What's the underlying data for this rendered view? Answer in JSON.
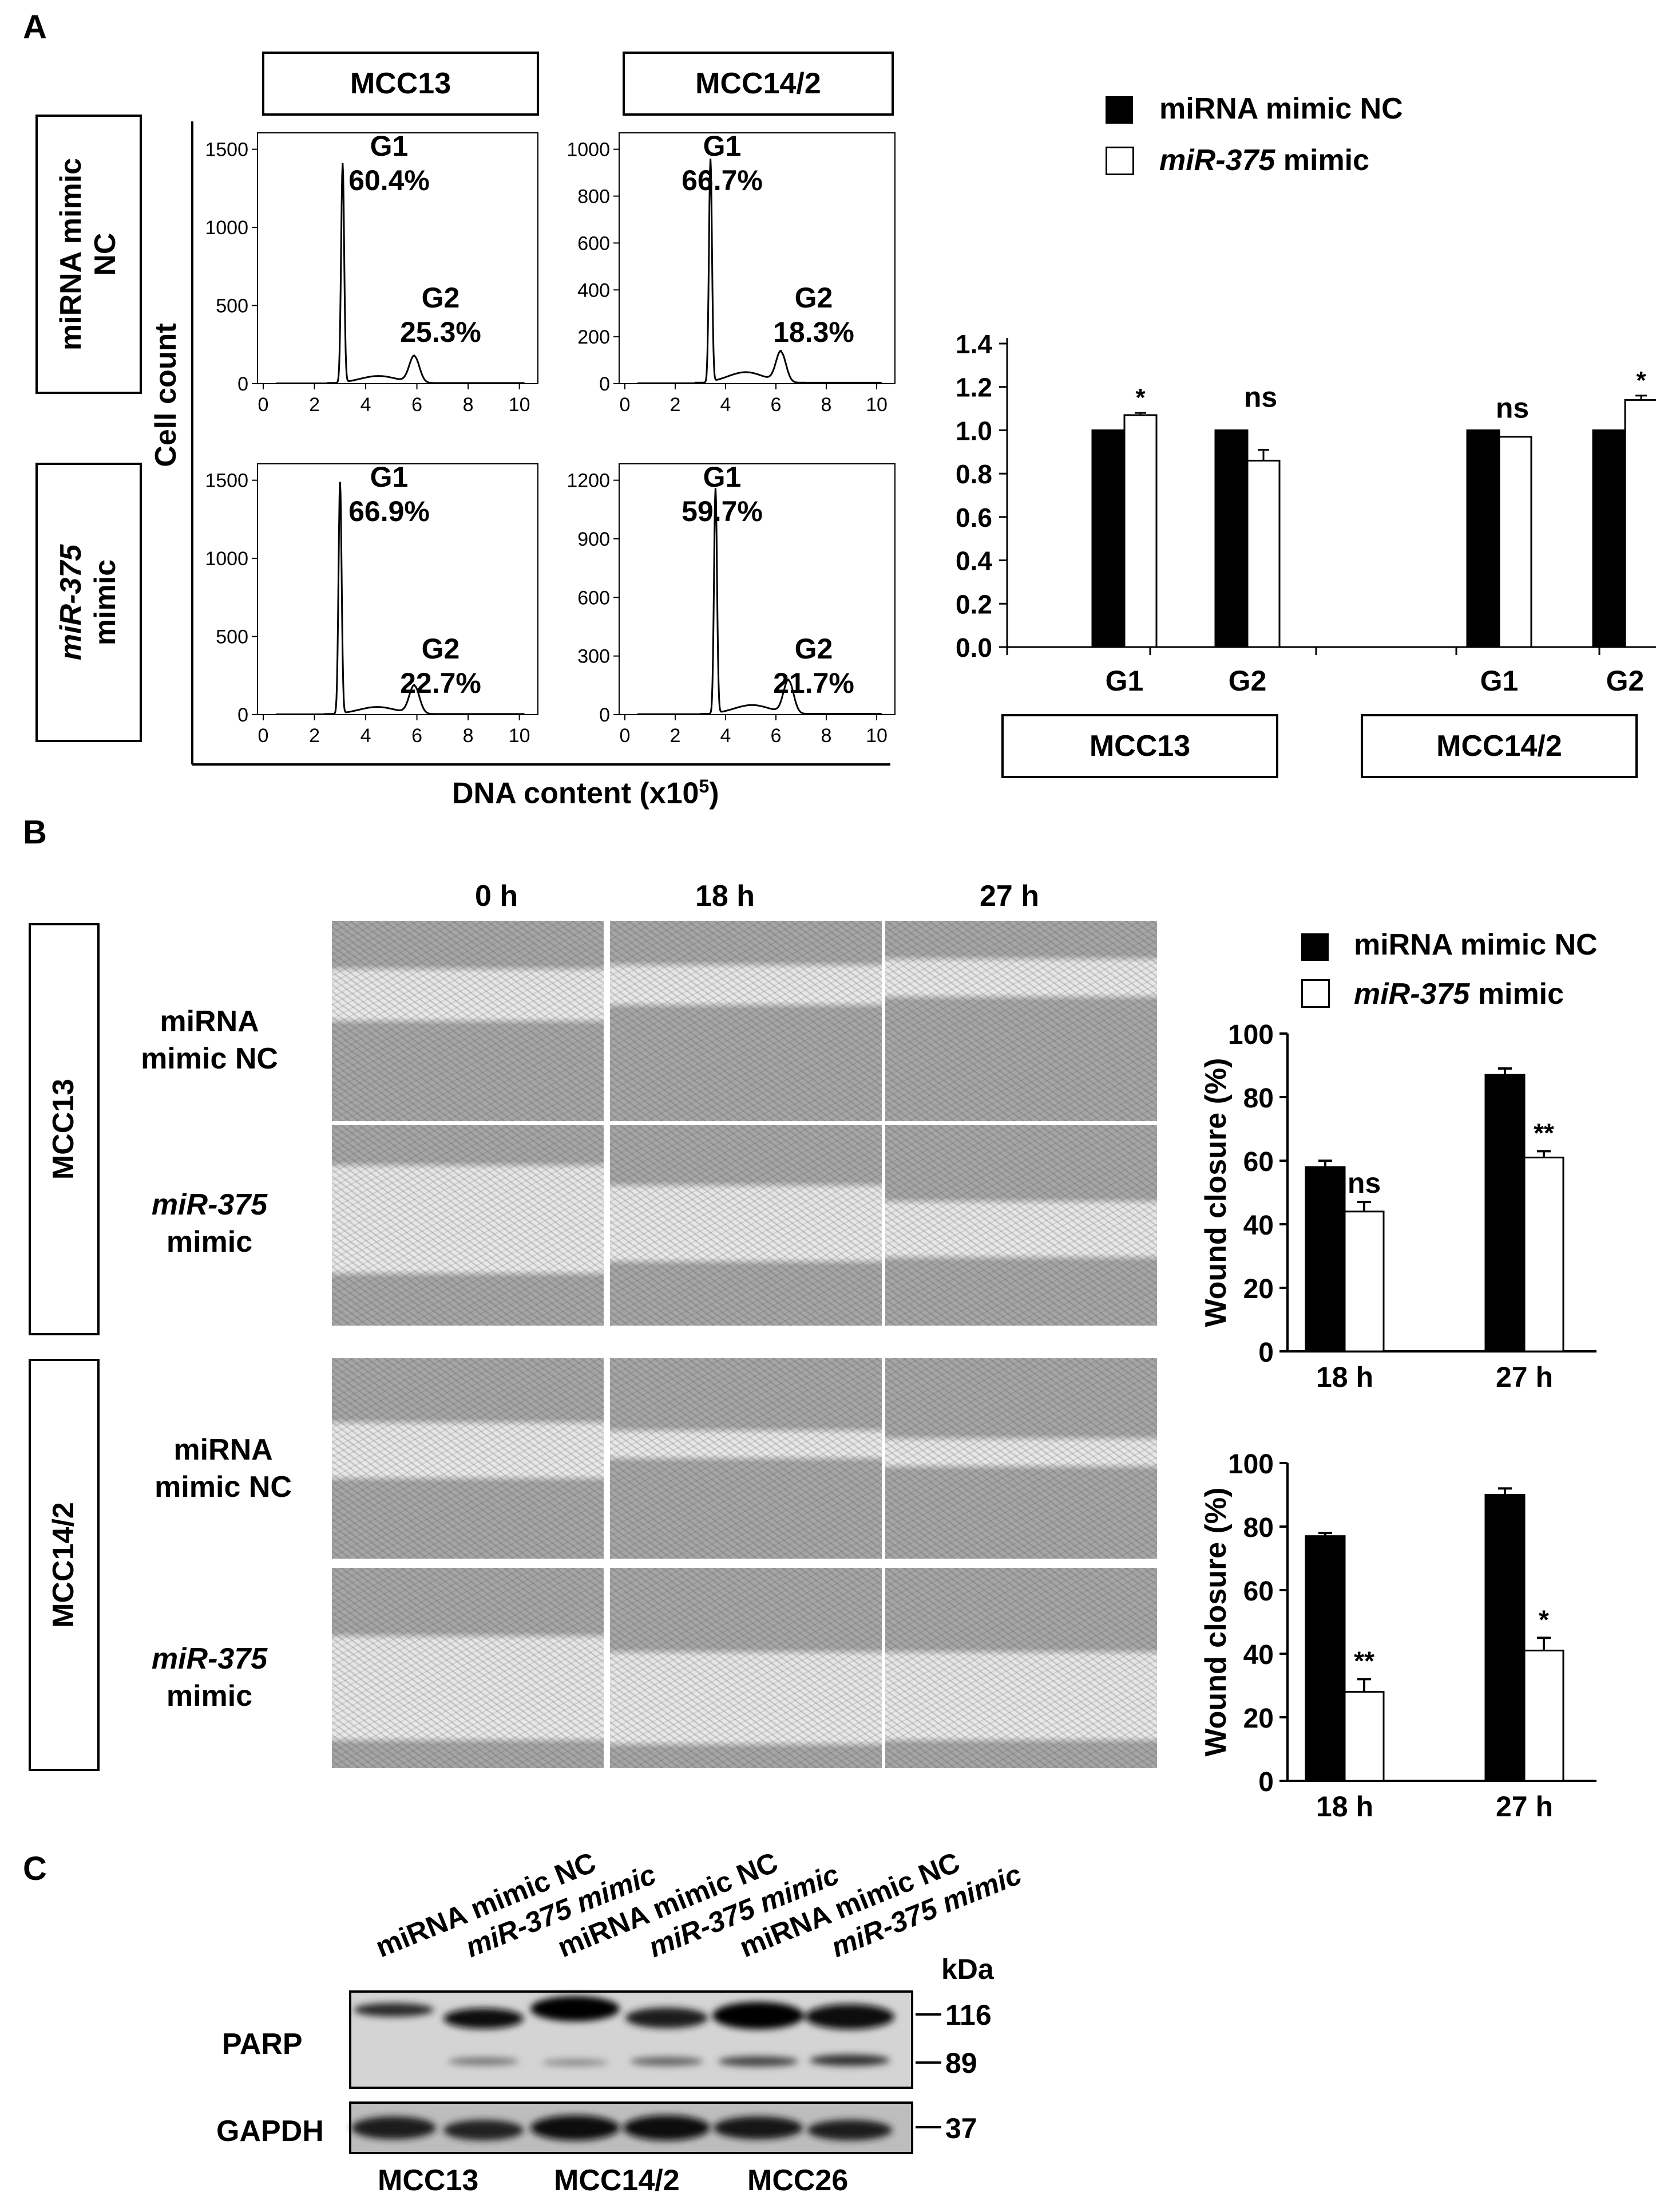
{
  "panel_a": {
    "letter": "A",
    "cell_lines": [
      "MCC13",
      "MCC14/2"
    ],
    "row_labels": [
      {
        "line1": "miRNA mimic",
        "line2": "NC",
        "italic_part": ""
      },
      {
        "line1": "miR-375",
        "line2": "mimic",
        "italic_part": "miR-375"
      }
    ],
    "y_axis_label": "Cell count",
    "x_axis_label": "DNA content (x10",
    "x_axis_sup": "5",
    "x_axis_close": ")",
    "histograms": [
      {
        "yticks": [
          "0",
          "500",
          "1000",
          "1500"
        ],
        "g1": "G1",
        "g1_pct": "60.4%",
        "g2": "G2",
        "g2_pct": "25.3%"
      },
      {
        "yticks": [
          "0",
          "200",
          "400",
          "600",
          "800",
          "1000"
        ],
        "g1": "G1",
        "g1_pct": "66.7%",
        "g2": "G2",
        "g2_pct": "18.3%"
      },
      {
        "yticks": [
          "0",
          "500",
          "1000",
          "1500"
        ],
        "g1": "G1",
        "g1_pct": "66.9%",
        "g2": "G2",
        "g2_pct": "22.7%"
      },
      {
        "yticks": [
          "0",
          "300",
          "600",
          "900",
          "1200"
        ],
        "g1": "G1",
        "g1_pct": "59.7%",
        "g2": "G2",
        "g2_pct": "21.7%"
      }
    ],
    "xticks": [
      "0",
      "2",
      "4",
      "6",
      "8",
      "10"
    ],
    "legend": {
      "nc": "miRNA mimic NC",
      "mimic_italic": "miR-375",
      "mimic_rest": " mimic"
    }
  },
  "panel_b": {
    "letter": "B",
    "timepoints": [
      "0 h",
      "18 h",
      "27 h"
    ],
    "groups": [
      {
        "cell_line": "MCC13",
        "rows": [
          {
            "l1": "miRNA",
            "l2": "mimic NC",
            "italic": false
          },
          {
            "l1": "miR-375",
            "l2": "mimic",
            "italic": true
          }
        ]
      },
      {
        "cell_line": "MCC14/2",
        "rows": [
          {
            "l1": "miRNA",
            "l2": "mimic NC",
            "italic": false
          },
          {
            "l1": "miR-375",
            "l2": "mimic",
            "italic": true
          }
        ]
      }
    ],
    "legend": {
      "nc": "miRNA mimic NC",
      "mimic_italic": "miR-375",
      "mimic_rest": " mimic"
    }
  },
  "panel_c": {
    "letter": "C",
    "lane_labels": [
      {
        "text": "miRNA mimic NC",
        "italic": false
      },
      {
        "text": "miR-375 mimic",
        "italic": true
      },
      {
        "text": "miRNA mimic NC",
        "italic": false
      },
      {
        "text": "miR-375 mimic",
        "italic": true
      },
      {
        "text": "miRNA mimic NC",
        "italic": false
      },
      {
        "text": "miR-375 mimic",
        "italic": true
      }
    ],
    "kda_label": "kDa",
    "markers": [
      "116",
      "89",
      "37"
    ],
    "blot_labels": [
      "PARP",
      "GAPDH"
    ],
    "cell_lines": [
      "MCC13",
      "MCC14/2",
      "MCC26"
    ]
  },
  "chart_data": [
    {
      "type": "bar",
      "ylim": [
        0,
        1.4
      ],
      "yticks": [
        "0.0",
        "0.2",
        "0.4",
        "0.6",
        "0.8",
        "1.0",
        "1.2",
        "1.4"
      ],
      "groups": [
        "MCC13",
        "MCC14/2"
      ],
      "categories": [
        "G1",
        "G2",
        "G1",
        "G2"
      ],
      "series": [
        {
          "name": "miRNA mimic NC",
          "color": "#000000",
          "values": [
            1.0,
            1.0,
            1.0,
            1.0
          ],
          "errors": [
            0,
            0,
            0,
            0
          ]
        },
        {
          "name": "miR-375 mimic",
          "color": "#ffffff",
          "values": [
            1.07,
            0.86,
            0.97,
            1.14
          ],
          "errors": [
            0.01,
            0.05,
            0,
            0.02
          ]
        }
      ],
      "annotations": [
        "*",
        "ns",
        "ns",
        "*"
      ]
    },
    {
      "type": "bar",
      "ylabel": "Wound closure (%)",
      "ylim": [
        0,
        100
      ],
      "yticks": [
        "0",
        "20",
        "40",
        "60",
        "80",
        "100"
      ],
      "categories": [
        "18 h",
        "27 h"
      ],
      "series": [
        {
          "name": "miRNA mimic NC",
          "color": "#000000",
          "values": [
            58,
            87
          ],
          "errors": [
            2,
            2
          ]
        },
        {
          "name": "miR-375 mimic",
          "color": "#ffffff",
          "values": [
            44,
            61
          ],
          "errors": [
            3,
            2
          ]
        }
      ],
      "annotations": [
        "ns",
        "**"
      ]
    },
    {
      "type": "bar",
      "ylabel": "Wound closure (%)",
      "ylim": [
        0,
        100
      ],
      "yticks": [
        "0",
        "20",
        "40",
        "60",
        "80",
        "100"
      ],
      "categories": [
        "18 h",
        "27 h"
      ],
      "series": [
        {
          "name": "miRNA mimic NC",
          "color": "#000000",
          "values": [
            77,
            90
          ],
          "errors": [
            1,
            2
          ]
        },
        {
          "name": "miR-375 mimic",
          "color": "#ffffff",
          "values": [
            28,
            41
          ],
          "errors": [
            4,
            4
          ]
        }
      ],
      "annotations": [
        "**",
        "*"
      ]
    }
  ]
}
